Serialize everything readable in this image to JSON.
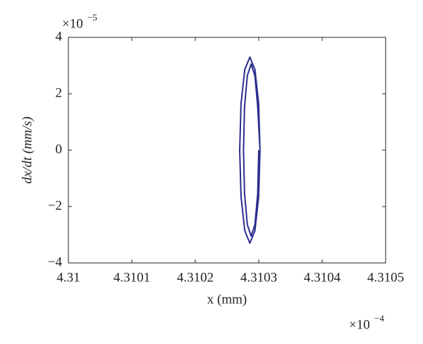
{
  "chart_data": {
    "type": "line",
    "x_label": "x (mm)",
    "y_label": "dx/dt (mm/s)",
    "x_multiplier": {
      "base": "×10",
      "exponent": "−4"
    },
    "y_multiplier": {
      "base": "×10",
      "exponent": "−5"
    },
    "xlim": [
      4.31,
      4.3105
    ],
    "ylim": [
      -4,
      4
    ],
    "xticks": [
      4.31,
      4.3101,
      4.3102,
      4.3103,
      4.3104,
      4.3105
    ],
    "yticks": [
      {
        "value": -4,
        "label": "−4"
      },
      {
        "value": -2,
        "label": "−2"
      },
      0,
      2,
      4
    ],
    "grid": false,
    "series": [
      {
        "color": "#2b2d8e",
        "x": [
          4.310302,
          4.3102999,
          4.310294,
          4.310286,
          4.310278,
          4.3102721,
          4.31027,
          4.3102721,
          4.310278,
          4.310286,
          4.310294,
          4.3102999,
          4.310302,
          4.3102984,
          4.310294,
          4.310288,
          4.310282,
          4.3102776,
          4.310276,
          4.3102776,
          4.310282,
          4.310288,
          4.310294,
          4.3102984,
          4.3103
        ],
        "values": [
          0,
          1.65,
          2.86,
          3.3,
          2.86,
          1.65,
          0,
          -1.65,
          -2.86,
          -3.3,
          -2.86,
          -1.65,
          0,
          1.53,
          2.64,
          3.05,
          2.64,
          1.53,
          0,
          -1.53,
          -2.64,
          -3.05,
          -2.64,
          -1.53,
          0
        ]
      }
    ]
  }
}
